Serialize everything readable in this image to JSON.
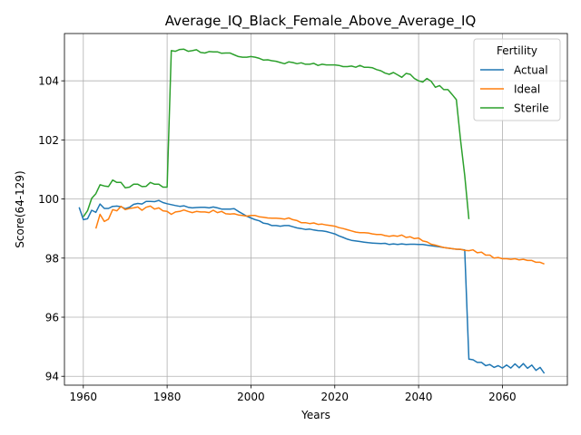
{
  "chart_data": {
    "type": "line",
    "title": "Average_IQ_Black_Female_Above_Average_IQ",
    "xlabel": "Years",
    "ylabel": "Score(64-129)",
    "xlim": [
      1955.5,
      2075.5
    ],
    "ylim": [
      93.7,
      105.6
    ],
    "xticks": [
      1960,
      1980,
      2000,
      2020,
      2040,
      2060
    ],
    "yticks": [
      94,
      96,
      98,
      100,
      102,
      104
    ],
    "grid": true,
    "legend": {
      "title": "Fertility",
      "placement": "top-right"
    },
    "series": [
      {
        "name": "Actual",
        "color": "#1f77b4",
        "x": [
          1959,
          1960,
          1961,
          1962,
          1963,
          1964,
          1965,
          1966,
          1967,
          1968,
          1969,
          1970,
          1971,
          1972,
          1973,
          1974,
          1975,
          1976,
          1977,
          1978,
          1979,
          1980,
          1981,
          1982,
          1983,
          1984,
          1985,
          1986,
          1987,
          1988,
          1989,
          1990,
          1991,
          1992,
          1993,
          1994,
          1995,
          1996,
          1997,
          1998,
          1999,
          2000,
          2001,
          2002,
          2003,
          2004,
          2005,
          2006,
          2007,
          2008,
          2009,
          2010,
          2011,
          2012,
          2013,
          2014,
          2015,
          2016,
          2017,
          2018,
          2019,
          2020,
          2021,
          2022,
          2023,
          2024,
          2025,
          2026,
          2027,
          2028,
          2029,
          2030,
          2031,
          2032,
          2033,
          2034,
          2035,
          2036,
          2037,
          2038,
          2039,
          2040,
          2041,
          2042,
          2043,
          2044,
          2045,
          2046,
          2047,
          2048,
          2049,
          2050,
          2051,
          2052,
          2053,
          2054,
          2055,
          2056,
          2057,
          2058,
          2059,
          2060,
          2061,
          2062,
          2063,
          2064,
          2065,
          2066,
          2067,
          2068,
          2069,
          2070
        ],
        "y": [
          99.72,
          99.3,
          99.33,
          99.62,
          99.55,
          99.83,
          99.68,
          99.68,
          99.75,
          99.76,
          99.74,
          99.67,
          99.72,
          99.82,
          99.85,
          99.83,
          99.92,
          99.92,
          99.91,
          99.95,
          99.88,
          99.84,
          99.81,
          99.78,
          99.75,
          99.77,
          99.72,
          99.7,
          99.71,
          99.72,
          99.72,
          99.7,
          99.73,
          99.7,
          99.66,
          99.66,
          99.66,
          99.67,
          99.58,
          99.5,
          99.42,
          99.36,
          99.3,
          99.26,
          99.18,
          99.16,
          99.1,
          99.1,
          99.08,
          99.1,
          99.1,
          99.06,
          99.02,
          99.0,
          98.97,
          98.98,
          98.95,
          98.93,
          98.92,
          98.9,
          98.86,
          98.82,
          98.75,
          98.7,
          98.64,
          98.6,
          98.58,
          98.56,
          98.54,
          98.52,
          98.51,
          98.5,
          98.49,
          98.5,
          98.46,
          98.48,
          98.46,
          98.48,
          98.46,
          98.47,
          98.47,
          98.46,
          98.46,
          98.44,
          98.42,
          98.4,
          98.38,
          98.36,
          98.34,
          98.32,
          98.3,
          98.29,
          98.28,
          94.58,
          94.56,
          94.47,
          94.47,
          94.36,
          94.4,
          94.3,
          94.36,
          94.28,
          94.38,
          94.28,
          94.42,
          94.29,
          94.43,
          94.27,
          94.38,
          94.2,
          94.3,
          94.1
        ]
      },
      {
        "name": "Ideal",
        "color": "#ff7f0e",
        "x": [
          1963,
          1964,
          1965,
          1966,
          1967,
          1968,
          1969,
          1970,
          1971,
          1972,
          1973,
          1974,
          1975,
          1976,
          1977,
          1978,
          1979,
          1980,
          1981,
          1982,
          1983,
          1984,
          1985,
          1986,
          1987,
          1988,
          1989,
          1990,
          1991,
          1992,
          1993,
          1994,
          1995,
          1996,
          1997,
          1998,
          1999,
          2000,
          2001,
          2002,
          2003,
          2004,
          2005,
          2006,
          2007,
          2008,
          2009,
          2010,
          2011,
          2012,
          2013,
          2014,
          2015,
          2016,
          2017,
          2018,
          2019,
          2020,
          2021,
          2022,
          2023,
          2024,
          2025,
          2026,
          2027,
          2028,
          2029,
          2030,
          2031,
          2032,
          2033,
          2034,
          2035,
          2036,
          2037,
          2038,
          2039,
          2040,
          2041,
          2042,
          2043,
          2044,
          2045,
          2046,
          2047,
          2048,
          2049,
          2050,
          2051,
          2052,
          2053,
          2054,
          2055,
          2056,
          2057,
          2058,
          2059,
          2060,
          2061,
          2062,
          2063,
          2064,
          2065,
          2066,
          2067,
          2068,
          2069,
          2070
        ],
        "y": [
          99.0,
          99.48,
          99.24,
          99.32,
          99.64,
          99.6,
          99.75,
          99.64,
          99.68,
          99.7,
          99.73,
          99.62,
          99.72,
          99.76,
          99.66,
          99.7,
          99.6,
          99.58,
          99.48,
          99.56,
          99.58,
          99.63,
          99.58,
          99.54,
          99.58,
          99.56,
          99.56,
          99.54,
          99.62,
          99.54,
          99.58,
          99.5,
          99.49,
          99.5,
          99.46,
          99.44,
          99.42,
          99.44,
          99.44,
          99.4,
          99.38,
          99.36,
          99.35,
          99.35,
          99.34,
          99.32,
          99.36,
          99.3,
          99.27,
          99.2,
          99.2,
          99.17,
          99.19,
          99.14,
          99.15,
          99.12,
          99.1,
          99.08,
          99.03,
          99.0,
          98.96,
          98.92,
          98.88,
          98.86,
          98.86,
          98.85,
          98.82,
          98.8,
          98.8,
          98.76,
          98.74,
          98.76,
          98.74,
          98.78,
          98.7,
          98.72,
          98.66,
          98.68,
          98.58,
          98.55,
          98.47,
          98.44,
          98.4,
          98.36,
          98.34,
          98.32,
          98.3,
          98.3,
          98.26,
          98.25,
          98.28,
          98.18,
          98.2,
          98.1,
          98.1,
          98.0,
          98.02,
          97.98,
          97.98,
          97.96,
          97.98,
          97.94,
          97.96,
          97.92,
          97.92,
          97.86,
          97.86,
          97.8
        ]
      },
      {
        "name": "Sterile",
        "color": "#2ca02c",
        "x": [
          1960,
          1961,
          1962,
          1963,
          1964,
          1965,
          1966,
          1967,
          1968,
          1969,
          1970,
          1971,
          1972,
          1973,
          1974,
          1975,
          1976,
          1977,
          1978,
          1979,
          1980,
          1981,
          1982,
          1983,
          1984,
          1985,
          1986,
          1987,
          1988,
          1989,
          1990,
          1991,
          1992,
          1993,
          1994,
          1995,
          1996,
          1997,
          1998,
          1999,
          2000,
          2001,
          2002,
          2003,
          2004,
          2005,
          2006,
          2007,
          2008,
          2009,
          2010,
          2011,
          2012,
          2013,
          2014,
          2015,
          2016,
          2017,
          2018,
          2019,
          2020,
          2021,
          2022,
          2023,
          2024,
          2025,
          2026,
          2027,
          2028,
          2029,
          2030,
          2031,
          2032,
          2033,
          2034,
          2035,
          2036,
          2037,
          2038,
          2039,
          2040,
          2041,
          2042,
          2043,
          2044,
          2045,
          2046,
          2047,
          2048,
          2049,
          2050,
          2051,
          2052
        ],
        "y": [
          99.4,
          99.6,
          100.02,
          100.18,
          100.48,
          100.44,
          100.42,
          100.64,
          100.56,
          100.56,
          100.38,
          100.4,
          100.5,
          100.5,
          100.42,
          100.43,
          100.56,
          100.5,
          100.5,
          100.4,
          100.4,
          105.02,
          105.0,
          105.06,
          105.07,
          105.0,
          105.02,
          105.05,
          104.96,
          104.94,
          104.99,
          104.98,
          104.98,
          104.93,
          104.94,
          104.94,
          104.88,
          104.82,
          104.8,
          104.8,
          104.82,
          104.8,
          104.76,
          104.7,
          104.71,
          104.68,
          104.66,
          104.62,
          104.58,
          104.64,
          104.62,
          104.58,
          104.61,
          104.56,
          104.56,
          104.59,
          104.52,
          104.56,
          104.54,
          104.54,
          104.54,
          104.52,
          104.48,
          104.48,
          104.5,
          104.46,
          104.52,
          104.46,
          104.46,
          104.44,
          104.38,
          104.34,
          104.26,
          104.22,
          104.28,
          104.2,
          104.12,
          104.25,
          104.22,
          104.08,
          104.0,
          103.96,
          104.08,
          103.98,
          103.78,
          103.84,
          103.7,
          103.7,
          103.54,
          103.36,
          102.0,
          100.8,
          99.32
        ]
      }
    ]
  }
}
